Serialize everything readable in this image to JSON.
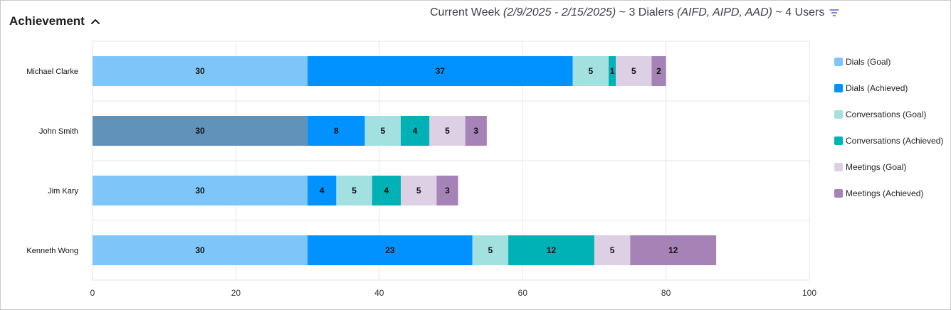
{
  "header": {
    "section_title": "Achievement",
    "range_prefix": "Current Week ",
    "range_dates": "(2/9/2025 - 2/15/2025)",
    "dialers_text": " ~ 3 Dialers ",
    "dialers_list": "(AIFD, AIPD, AAD)",
    "users_text": " ~ 4 Users",
    "collapse_icon": "chevron-up-icon",
    "filter_icon": "filter-icon"
  },
  "colors": {
    "dials_goal": "#7ec6fa",
    "dials_achieved": "#0292ff",
    "conversations_goal": "#a2e1e0",
    "conversations_achieved": "#00b2b5",
    "meetings_goal": "#ddcfe4",
    "meetings_achieved": "#a683b6",
    "dials_goal_highlighted": "#6193ba",
    "grid": "#e6e6e6",
    "axis_text": "#333333",
    "accent": "#5a5fd6"
  },
  "chart_data": {
    "type": "bar",
    "orientation": "horizontal",
    "stacked": true,
    "categories": [
      "Michael Clarke",
      "John Smith",
      "Jim Kary",
      "Kenneth Wong"
    ],
    "series": [
      {
        "name": "Dials (Goal)",
        "values": [
          30,
          30,
          30,
          30
        ]
      },
      {
        "name": "Dials (Achieved)",
        "values": [
          37,
          8,
          4,
          23
        ]
      },
      {
        "name": "Conversations (Goal)",
        "values": [
          5,
          5,
          5,
          5
        ]
      },
      {
        "name": "Conversations (Achieved)",
        "values": [
          1,
          4,
          4,
          12
        ]
      },
      {
        "name": "Meetings (Goal)",
        "values": [
          5,
          5,
          5,
          5
        ]
      },
      {
        "name": "Meetings (Achieved)",
        "values": [
          2,
          3,
          3,
          12
        ]
      }
    ],
    "xlim": [
      0,
      100
    ],
    "xticks": [
      0,
      20,
      40,
      60,
      80,
      100
    ],
    "grid": true,
    "legend_position": "right",
    "highlighted": {
      "category": "John Smith",
      "series": "Dials (Goal)"
    }
  }
}
